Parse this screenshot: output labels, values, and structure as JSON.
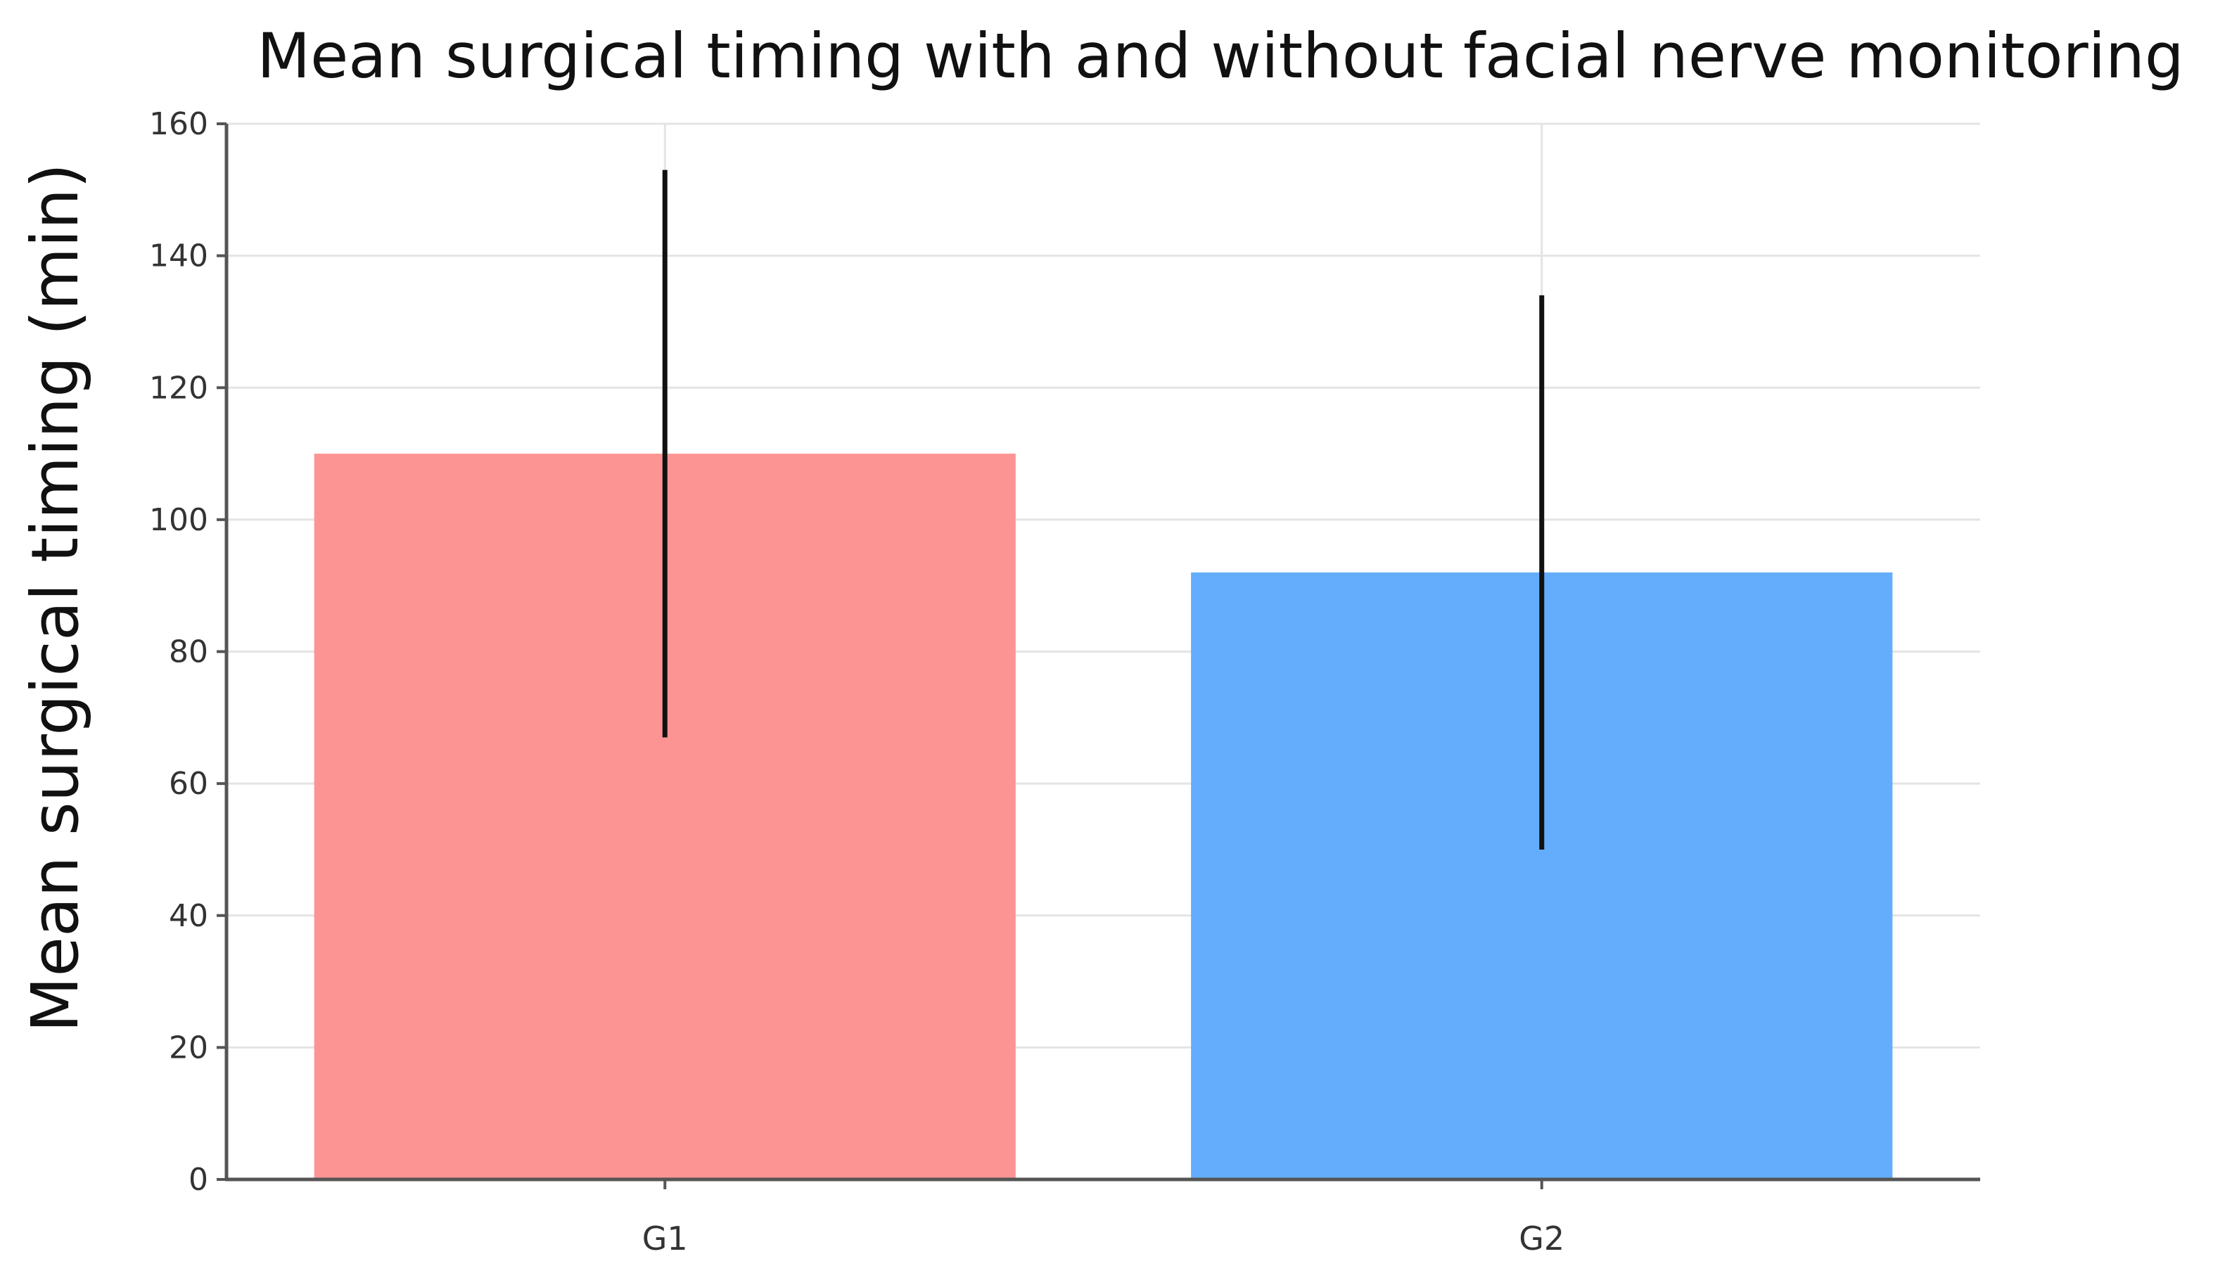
{
  "chart_data": {
    "type": "bar",
    "title": "Mean surgical timing with and without facial nerve monitoring",
    "xlabel": "",
    "ylabel": "Mean surgical timing (min)",
    "categories": [
      "G1",
      "G2"
    ],
    "values": [
      110,
      92
    ],
    "error_low": [
      67,
      50
    ],
    "error_high": [
      153,
      134
    ],
    "ylim": [
      0,
      160
    ],
    "yticks": [
      0,
      20,
      40,
      60,
      80,
      100,
      120,
      140,
      160
    ],
    "grid": true,
    "legend": "none",
    "colors": [
      "#fc9494",
      "#64adfc"
    ],
    "error_color": "#111111"
  }
}
